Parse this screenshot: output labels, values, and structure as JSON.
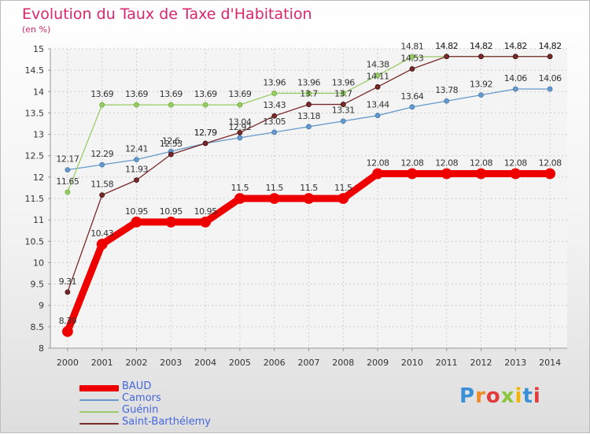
{
  "header": {
    "title": "Evolution du Taux de Taxe d'Habitation",
    "subtitle": "(en %)"
  },
  "logo": {
    "text": "Proxiti",
    "letter_colors": [
      "#3b8fd6",
      "#f08a24",
      "#e03c3c",
      "#8cc63f",
      "#f5b400",
      "#3b8fd6",
      "#e03c3c"
    ]
  },
  "chart_data": {
    "type": "line",
    "x": [
      2000,
      2001,
      2002,
      2003,
      2004,
      2005,
      2006,
      2007,
      2008,
      2009,
      2010,
      2011,
      2012,
      2013,
      2014
    ],
    "ylim": [
      8,
      15
    ],
    "yticks": [
      "8",
      "8.5",
      "9",
      "9.5",
      "10",
      "10.5",
      "11",
      "11.5",
      "12",
      "12.5",
      "13",
      "13.5",
      "14",
      "14.5",
      "15"
    ],
    "grid": true,
    "legend_position": "bottom-left",
    "series": [
      {
        "name": "BAUD",
        "color": "#ee0000",
        "values": [
          8.39,
          10.43,
          10.95,
          10.95,
          10.95,
          11.5,
          11.5,
          11.5,
          11.5,
          12.08,
          12.08,
          12.08,
          12.08,
          12.08,
          12.08
        ],
        "labels": [
          "8.39",
          "10.43",
          "10.95",
          "10.95",
          "10.95",
          "11.5",
          "11.5",
          "11.5",
          "11.5",
          "12.08",
          "12.08",
          "12.08",
          "12.08",
          "12.08",
          "12.08"
        ]
      },
      {
        "name": "Camors",
        "color": "#6699cc",
        "values": [
          12.17,
          12.29,
          12.41,
          12.6,
          12.79,
          12.92,
          13.05,
          13.18,
          13.31,
          13.44,
          13.64,
          13.78,
          13.92,
          14.06,
          14.06
        ],
        "labels": [
          "12.17",
          "12.29",
          "12.41",
          "12.6",
          "12.79",
          "12.92",
          "13.05",
          "13.18",
          "13.31",
          "13.44",
          "13.64",
          "13.78",
          "13.92",
          "14.06",
          "14.06"
        ]
      },
      {
        "name": "Guénin",
        "color": "#99cc66",
        "values": [
          11.65,
          13.69,
          13.69,
          13.69,
          13.69,
          13.69,
          13.96,
          13.96,
          13.96,
          14.38,
          14.81,
          14.82,
          14.82,
          14.82,
          14.82
        ],
        "labels": [
          "11.65",
          "13.69",
          "13.69",
          "13.69",
          "13.69",
          "13.69",
          "13.96",
          "13.96",
          "13.96",
          "14.38",
          "14.81",
          "14.82",
          "14.82",
          "14.82",
          "14.82"
        ]
      },
      {
        "name": "Saint-Barthélemy",
        "color": "#7a2a2a",
        "values": [
          9.31,
          11.58,
          11.93,
          12.53,
          12.79,
          13.04,
          13.43,
          13.7,
          13.7,
          14.11,
          14.53,
          14.82,
          14.82,
          14.82,
          14.82
        ],
        "labels": [
          "9.31",
          "11.58",
          "11.93",
          "12.53",
          "12.79",
          "13.04",
          "13.43",
          "13.7",
          "13.7",
          "14.11",
          "14.53",
          "14.82",
          "14.82",
          "14.82",
          "14.82"
        ]
      }
    ]
  }
}
